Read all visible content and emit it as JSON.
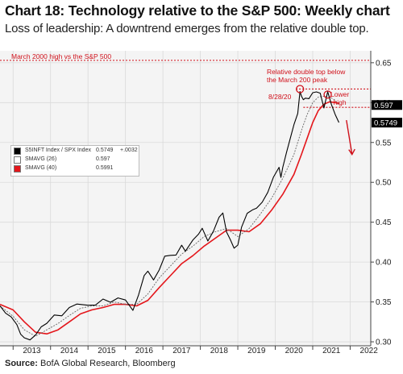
{
  "title": "Chart 18: Technology relative to the S&P 500: Weekly chart",
  "subtitle": "Loss of leadership: A downtrend emerges from the relative double top.",
  "source_label": "Source:",
  "source_text": "BofA Global Research, Bloomberg",
  "annotations": {
    "march_2000": "March 2000 high vs the S&P 500",
    "double_top_line1": "Relative double top below",
    "double_top_line2": "the March 200 peak",
    "date": "8/28/20",
    "lower_high_line1": "Lower",
    "lower_high_line2": "high"
  },
  "colors": {
    "price": "#000000",
    "sma26": "#666666",
    "sma40": "#e4161b",
    "annotation": "#d0101a"
  },
  "chart_data": {
    "type": "line",
    "xlabel": "",
    "ylabel": "",
    "xlim": [
      2012.65,
      2022.55
    ],
    "ylim": [
      0.295,
      0.665
    ],
    "x_ticks": [
      "2013",
      "2014",
      "2015",
      "2016",
      "2017",
      "2018",
      "2019",
      "2020",
      "2021",
      "2022"
    ],
    "y_ticks": [
      "0.65",
      "0.60",
      "0.55",
      "0.50",
      "0.45",
      "0.40",
      "0.35",
      "0.30"
    ],
    "reference_lines": [
      {
        "name": "March 2000 high",
        "y": 0.653
      },
      {
        "name": "relative double top",
        "y": 0.617
      },
      {
        "name": "lower high",
        "y": 0.594
      }
    ],
    "last_value_labels": [
      {
        "value": "0.597",
        "y": 0.597
      },
      {
        "value": "0.5749",
        "y": 0.5749
      }
    ],
    "legend": [
      {
        "name": "S5INFT Index / SPX Index",
        "value": "0.5749",
        "change": "+.0032"
      },
      {
        "name": "SMAVG (26)",
        "value": "0.597",
        "change": ""
      },
      {
        "name": "SMAVG (40)",
        "value": "0.5991",
        "change": ""
      }
    ],
    "series": [
      {
        "name": "S5INFT Index / SPX Index",
        "x": [
          2012.65,
          2012.8,
          2012.95,
          2013.1,
          2013.2,
          2013.3,
          2013.45,
          2013.6,
          2013.75,
          2013.9,
          2014.1,
          2014.3,
          2014.5,
          2014.7,
          2014.9,
          2015.0,
          2015.2,
          2015.4,
          2015.6,
          2015.8,
          2016.0,
          2016.2,
          2016.35,
          2016.5,
          2016.6,
          2016.75,
          2016.9,
          2017.05,
          2017.2,
          2017.35,
          2017.5,
          2017.6,
          2017.8,
          2017.95,
          2018.05,
          2018.2,
          2018.35,
          2018.5,
          2018.6,
          2018.7,
          2018.8,
          2018.9,
          2019.0,
          2019.1,
          2019.25,
          2019.4,
          2019.5,
          2019.65,
          2019.8,
          2019.95,
          2020.1,
          2020.15,
          2020.2,
          2020.3,
          2020.4,
          2020.5,
          2020.6,
          2020.66,
          2020.7,
          2020.75,
          2020.8,
          2020.9,
          2021.0,
          2021.1,
          2021.2,
          2021.3,
          2021.4,
          2021.5,
          2021.6,
          2021.7
        ],
        "y": [
          0.345,
          0.337,
          0.33,
          0.318,
          0.312,
          0.305,
          0.3,
          0.312,
          0.32,
          0.322,
          0.33,
          0.335,
          0.343,
          0.345,
          0.35,
          0.347,
          0.345,
          0.35,
          0.352,
          0.355,
          0.35,
          0.343,
          0.36,
          0.382,
          0.385,
          0.38,
          0.39,
          0.405,
          0.412,
          0.41,
          0.42,
          0.41,
          0.43,
          0.435,
          0.44,
          0.43,
          0.44,
          0.455,
          0.458,
          0.44,
          0.428,
          0.415,
          0.425,
          0.445,
          0.46,
          0.462,
          0.47,
          0.475,
          0.485,
          0.51,
          0.52,
          0.505,
          0.515,
          0.54,
          0.555,
          0.57,
          0.59,
          0.615,
          0.607,
          0.6,
          0.608,
          0.605,
          0.61,
          0.617,
          0.613,
          0.592,
          0.61,
          0.6,
          0.585,
          0.575
        ]
      },
      {
        "name": "SMAVG (26)",
        "x": [
          2012.65,
          2013.0,
          2013.3,
          2013.6,
          2013.9,
          2014.2,
          2014.5,
          2014.8,
          2015.1,
          2015.4,
          2015.7,
          2016.0,
          2016.3,
          2016.6,
          2016.9,
          2017.2,
          2017.5,
          2017.8,
          2018.1,
          2018.4,
          2018.7,
          2019.0,
          2019.3,
          2019.6,
          2019.9,
          2020.2,
          2020.5,
          2020.7,
          2020.85,
          2021.0,
          2021.15,
          2021.3,
          2021.45,
          2021.6,
          2021.7
        ],
        "y": [
          0.345,
          0.332,
          0.315,
          0.307,
          0.315,
          0.323,
          0.333,
          0.342,
          0.345,
          0.345,
          0.35,
          0.347,
          0.347,
          0.36,
          0.38,
          0.395,
          0.41,
          0.42,
          0.432,
          0.438,
          0.442,
          0.432,
          0.442,
          0.46,
          0.48,
          0.505,
          0.535,
          0.565,
          0.585,
          0.6,
          0.607,
          0.608,
          0.607,
          0.603,
          0.597
        ]
      },
      {
        "name": "SMAVG (40)",
        "x": [
          2012.65,
          2013.0,
          2013.3,
          2013.6,
          2013.9,
          2014.2,
          2014.5,
          2014.8,
          2015.1,
          2015.4,
          2015.7,
          2016.0,
          2016.3,
          2016.6,
          2016.9,
          2017.2,
          2017.5,
          2017.8,
          2018.1,
          2018.4,
          2018.7,
          2019.0,
          2019.3,
          2019.6,
          2019.9,
          2020.2,
          2020.5,
          2020.7,
          2020.85,
          2021.0,
          2021.15,
          2021.3,
          2021.45,
          2021.6,
          2021.7
        ],
        "y": [
          0.347,
          0.34,
          0.325,
          0.312,
          0.31,
          0.315,
          0.325,
          0.335,
          0.34,
          0.343,
          0.347,
          0.347,
          0.345,
          0.352,
          0.368,
          0.383,
          0.398,
          0.408,
          0.42,
          0.43,
          0.44,
          0.44,
          0.438,
          0.448,
          0.465,
          0.485,
          0.51,
          0.535,
          0.555,
          0.575,
          0.59,
          0.598,
          0.601,
          0.6,
          0.599
        ]
      }
    ]
  }
}
